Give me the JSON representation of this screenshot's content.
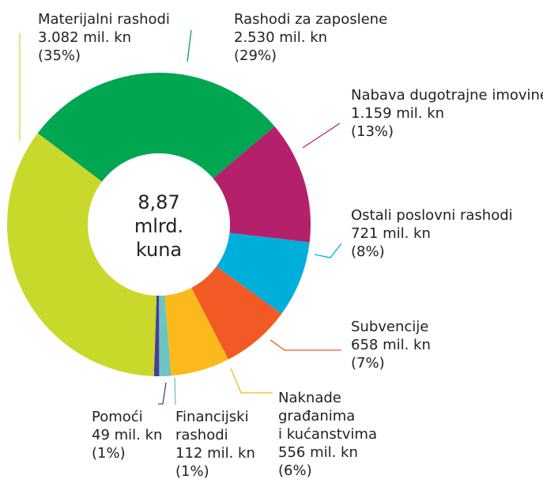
{
  "chart_data": {
    "type": "donut",
    "center_label": [
      "8,87",
      "mlrd.",
      "kuna"
    ],
    "categories": [
      [
        "Materijalni rashodi"
      ],
      [
        "Rashodi za zaposlene"
      ],
      [
        "Nabava dugotrajne imovine"
      ],
      [
        "Ostali poslovni rashodi"
      ],
      [
        "Subvencije"
      ],
      [
        "Naknade",
        "građanima",
        "i kućanstvima"
      ],
      [
        "Financijski",
        "rashodi"
      ],
      [
        "Pomoći"
      ]
    ],
    "values": [
      3082,
      2530,
      1159,
      721,
      658,
      556,
      112,
      49
    ],
    "value_labels": [
      "3.082 mil. kn",
      "2.530 mil. kn",
      "1.159 mil. kn",
      "721 mil. kn",
      "658 mil. kn",
      "556 mil. kn",
      "112 mil. kn",
      "49 mil. kn"
    ],
    "share_labels": [
      "(35%)",
      "(29%)",
      "(13%)",
      "(8%)",
      "(7%)",
      "(6%)",
      "(1%)",
      "(1%)"
    ],
    "colors": [
      "#c8d92b",
      "#00a651",
      "#b5206b",
      "#00aedb",
      "#f15a24",
      "#fbb91b",
      "#6cc5c0",
      "#4b3f98"
    ]
  }
}
